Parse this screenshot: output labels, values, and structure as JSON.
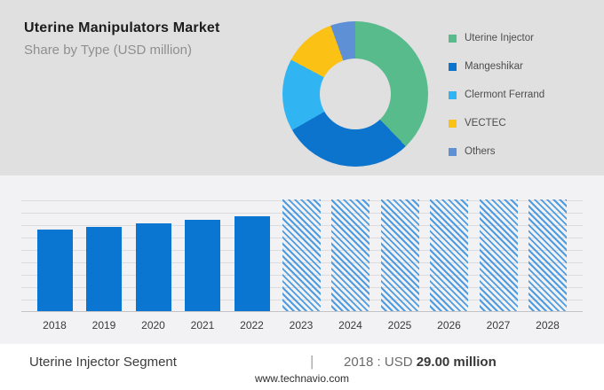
{
  "header": {
    "title": "Uterine Manipulators Market",
    "subtitle": "Share by Type (USD million)"
  },
  "colors": {
    "top_section_bg": "#e0e0e1",
    "chart_section_bg": "#f2f2f4",
    "footer_bg": "#ffffff",
    "bar_actual": "#0b76d1",
    "bar_forecast_hatch": "#4d9ce1",
    "gridline": "#dcdcdf",
    "baseline": "#c3c3c6"
  },
  "chart_data": [
    {
      "type": "pie",
      "donut": true,
      "title": "Share by Type (USD million)",
      "legend_position": "right",
      "segments": [
        {
          "label": "Uterine Injector",
          "percent": 37.8,
          "color": "#58bb8c"
        },
        {
          "label": "Mangeshikar",
          "percent": 28.9,
          "color": "#0d74cd"
        },
        {
          "label": "Clermont Ferrand",
          "percent": 16.1,
          "color": "#30b5f2"
        },
        {
          "label": "VECTEC",
          "percent": 11.7,
          "color": "#fcc115"
        },
        {
          "label": "Others",
          "percent": 5.5,
          "color": "#5d90d5"
        }
      ]
    },
    {
      "type": "bar",
      "categories": [
        "2018",
        "2019",
        "2020",
        "2021",
        "2022",
        "2023",
        "2024",
        "2025",
        "2026",
        "2027",
        "2028"
      ],
      "values": [
        29.0,
        30.0,
        31.2,
        32.5,
        33.7,
        null,
        null,
        null,
        null,
        null,
        null
      ],
      "forecast": [
        false,
        false,
        false,
        false,
        false,
        true,
        true,
        true,
        true,
        true,
        true
      ],
      "forecast_style": "hatched",
      "ylim": [
        0,
        39.7
      ],
      "ylabel": "USD million",
      "grid": true,
      "annotation": "2018 : USD 29.00 million"
    }
  ],
  "footer": {
    "segment_label": "Uterine Injector Segment",
    "divider": "|",
    "value_prefix": "2018 : USD ",
    "value_bold": "29.00 million",
    "website": "www.technavio.com"
  }
}
